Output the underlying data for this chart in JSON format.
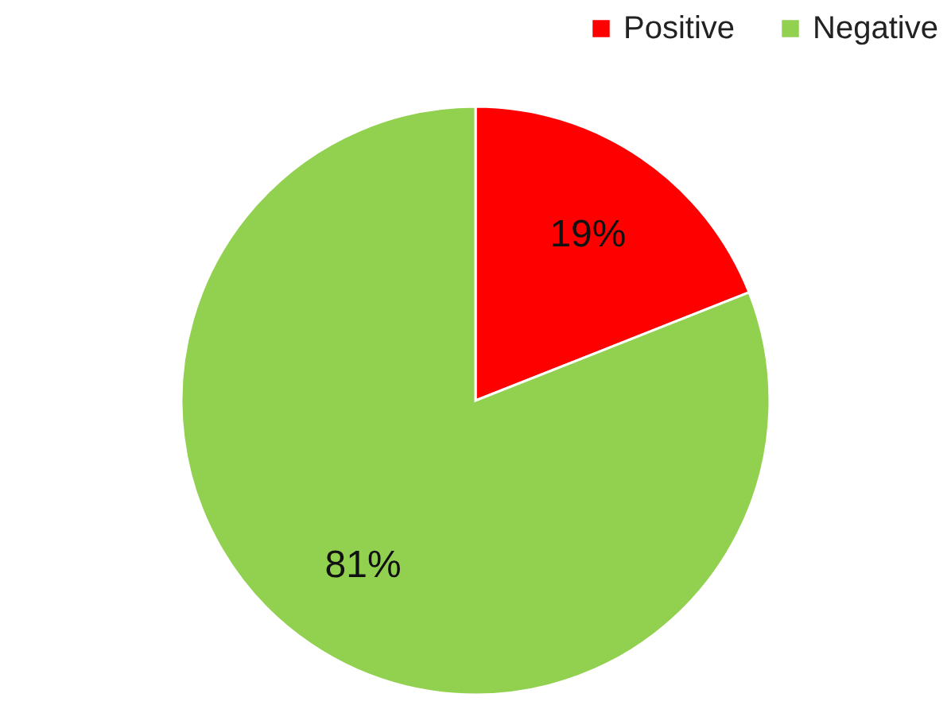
{
  "chart_data": {
    "type": "pie",
    "categories": [
      "Positive",
      "Negative"
    ],
    "values": [
      19,
      81
    ],
    "colors": [
      "#ff0000",
      "#92d050"
    ],
    "value_labels": [
      "19%",
      "81%"
    ],
    "legend": "top right"
  }
}
